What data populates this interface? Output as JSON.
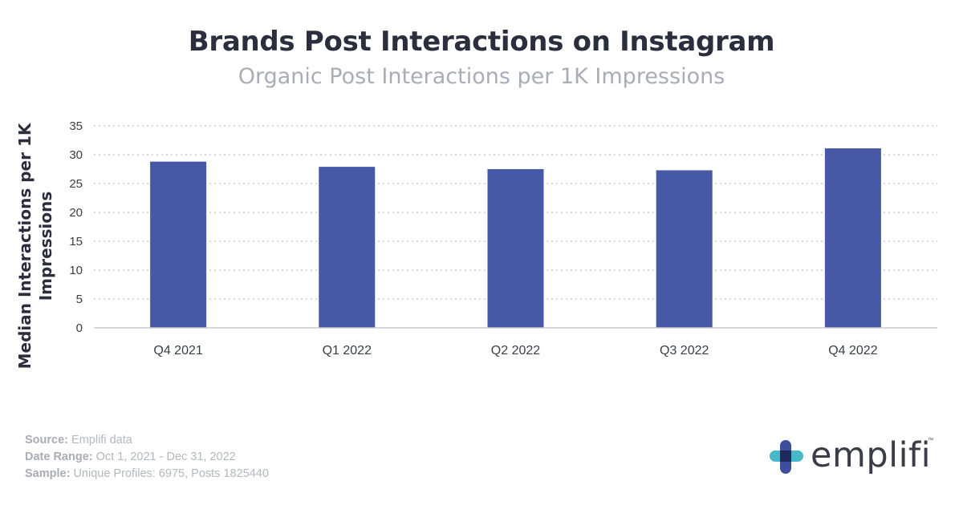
{
  "title": "Brands Post Interactions on Instagram",
  "subtitle": "Organic Post Interactions per 1K Impressions",
  "chart_data": {
    "type": "bar",
    "title": "Brands Post Interactions on Instagram",
    "subtitle": "Organic Post Interactions per 1K Impressions",
    "xlabel": "",
    "ylabel": "Median Interactions per 1K Impressions",
    "categories": [
      "Q4 2021",
      "Q1 2022",
      "Q2 2022",
      "Q3 2022",
      "Q4 2022"
    ],
    "values": [
      28.8,
      27.9,
      27.5,
      27.3,
      31.1
    ],
    "ylim": [
      0,
      35
    ],
    "yticks": [
      0,
      5,
      10,
      15,
      20,
      25,
      30,
      35
    ],
    "grid": true,
    "bar_color": "#4759a6"
  },
  "footer": {
    "source_label": "Source:",
    "source_value": "Emplifi data",
    "date_label": "Date Range:",
    "date_value": "Oct 1, 2021 - Dec 31, 2022",
    "sample_label": "Sample:",
    "sample_value": "Unique Profiles: 6975, Posts 1825440"
  },
  "logo": {
    "text": "emplifi",
    "tm": "™"
  }
}
